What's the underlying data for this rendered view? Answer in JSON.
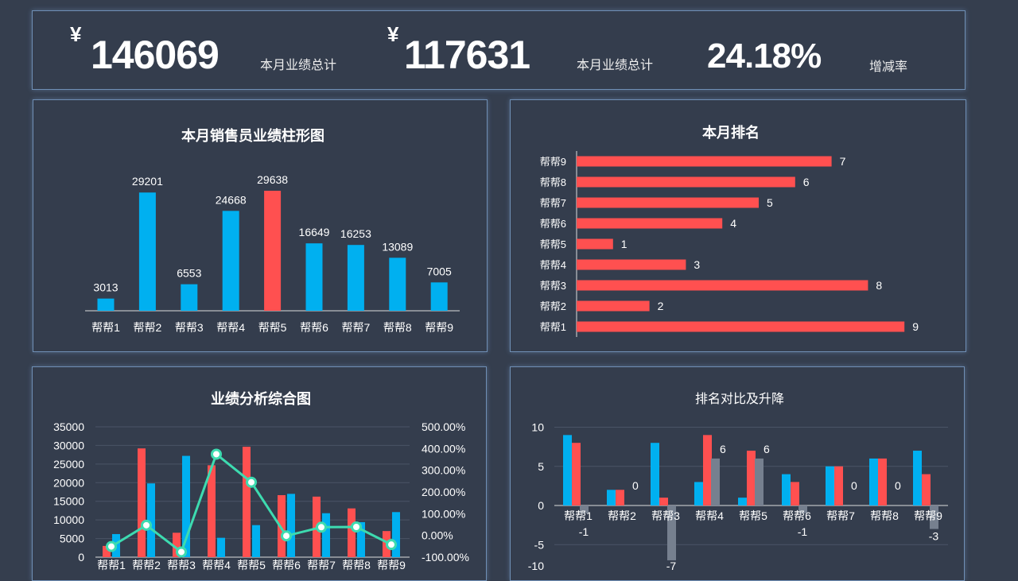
{
  "header": {
    "kpis": [
      {
        "currency": "¥",
        "value": "146069",
        "label": "本月业绩总计"
      },
      {
        "currency": "¥",
        "value": "117631",
        "label": "本月业绩总计"
      },
      {
        "currency": "",
        "value": "24.18%",
        "label": "增减率"
      }
    ]
  },
  "colors": {
    "blue": "#00b0f0",
    "red": "#ff5050",
    "gray": "#76808f",
    "line": "#3ddbb0",
    "highlight": "#ff5050"
  },
  "chart_data": [
    {
      "type": "bar",
      "title": "本月销售员业绩柱形图",
      "categories": [
        "帮帮1",
        "帮帮2",
        "帮帮3",
        "帮帮4",
        "帮帮5",
        "帮帮6",
        "帮帮7",
        "帮帮8",
        "帮帮9"
      ],
      "values": [
        3013,
        29201,
        6553,
        24668,
        29638,
        16649,
        16253,
        13089,
        7005
      ],
      "highlight_max": true
    },
    {
      "type": "bar",
      "orientation": "horizontal",
      "title": "本月排名",
      "categories": [
        "帮帮1",
        "帮帮2",
        "帮帮3",
        "帮帮4",
        "帮帮5",
        "帮帮6",
        "帮帮7",
        "帮帮8",
        "帮帮9"
      ],
      "values": [
        9,
        2,
        8,
        3,
        1,
        4,
        5,
        6,
        7
      ]
    },
    {
      "type": "bar+line",
      "title": "业绩分析综合图",
      "categories": [
        "帮帮1",
        "帮帮2",
        "帮帮3",
        "帮帮4",
        "帮帮5",
        "帮帮6",
        "帮帮7",
        "帮帮8",
        "帮帮9"
      ],
      "series": [
        {
          "type": "bar",
          "color": "red",
          "values": [
            3013,
            29201,
            6553,
            24668,
            29638,
            16649,
            16253,
            13089,
            7005
          ]
        },
        {
          "type": "bar",
          "color": "blue",
          "values": [
            6200,
            19800,
            27200,
            5200,
            8600,
            17000,
            11800,
            9400,
            12100
          ]
        },
        {
          "type": "line",
          "axis": "right",
          "values": [
            -0.51,
            0.47,
            -0.76,
            3.74,
            2.45,
            -0.02,
            0.38,
            0.39,
            -0.42
          ]
        }
      ],
      "ylim": [
        0,
        35000
      ],
      "yticks": [
        0,
        5000,
        10000,
        15000,
        20000,
        25000,
        30000,
        35000
      ],
      "y2lim": [
        -1,
        5
      ],
      "y2ticks": [
        "-100.00%",
        "0.00%",
        "100.00%",
        "200.00%",
        "300.00%",
        "400.00%",
        "500.00%"
      ],
      "grid": true
    },
    {
      "type": "bar",
      "title": "排名对比及升降",
      "categories": [
        "帮帮1",
        "帮帮2",
        "帮帮3",
        "帮帮4",
        "帮帮5",
        "帮帮6",
        "帮帮7",
        "帮帮8",
        "帮帮9"
      ],
      "series": [
        {
          "color": "blue",
          "values": [
            9,
            2,
            8,
            3,
            1,
            4,
            5,
            6,
            7
          ]
        },
        {
          "color": "red",
          "values": [
            8,
            2,
            1,
            9,
            7,
            3,
            5,
            6,
            4
          ]
        },
        {
          "color": "gray",
          "values": [
            -1,
            0,
            -7,
            6,
            6,
            -1,
            0,
            0,
            -3
          ],
          "labels": true
        }
      ],
      "ylim": [
        -10,
        10
      ],
      "yticks": [
        -10,
        -5,
        0,
        5,
        10
      ],
      "grid": true
    }
  ]
}
